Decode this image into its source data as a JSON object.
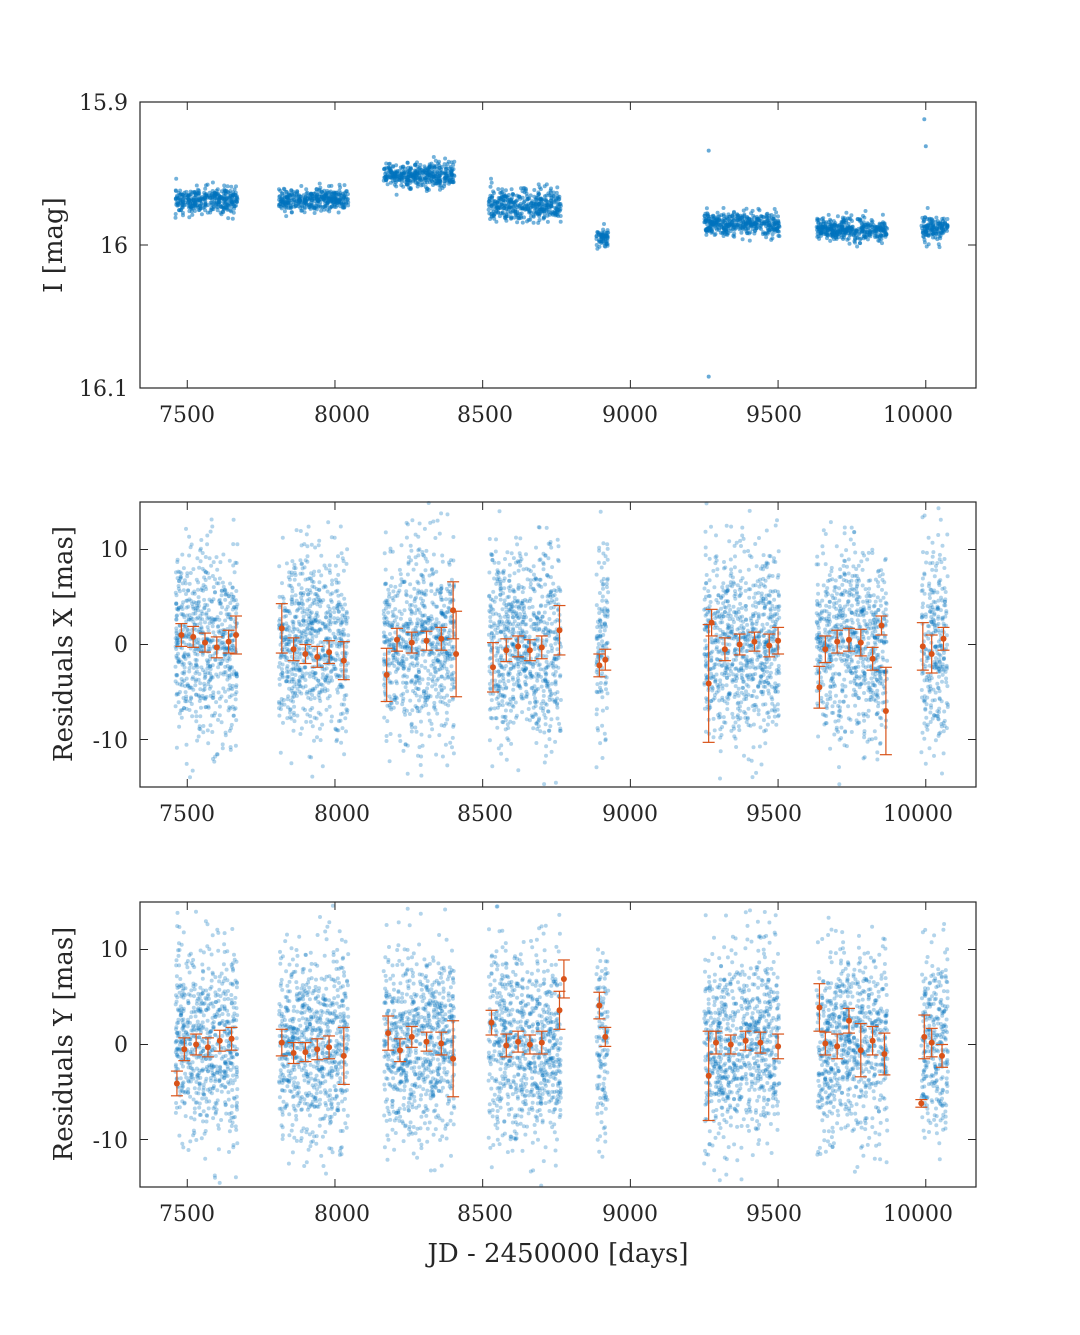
{
  "figure": {
    "xlabel": "JD - 2450000 [days]",
    "raw_color": "#0072BD",
    "binned_color": "#D95319",
    "axis_color": "#262626"
  },
  "chart_data": [
    {
      "type": "scatter",
      "name": "light-curve",
      "ylabel": "I [mag]",
      "xlim": [
        7340,
        10170
      ],
      "ylim": [
        16.1,
        15.9
      ],
      "y_inverted": true,
      "xticks": [
        "7500",
        "8000",
        "8500",
        "9000",
        "9500",
        "10000"
      ],
      "xtick_values": [
        7500,
        8000,
        8500,
        9000,
        9500,
        10000
      ],
      "yticks": [
        "15.9",
        "16",
        "16.1"
      ],
      "ytick_values": [
        15.9,
        16.0,
        16.1
      ],
      "seasons": [
        {
          "x_range": [
            7460,
            7670
          ],
          "y_center": 15.969,
          "spread": 0.008
        },
        {
          "x_range": [
            7810,
            8045
          ],
          "y_center": 15.968,
          "spread": 0.007
        },
        {
          "x_range": [
            8165,
            8405
          ],
          "y_center": 15.951,
          "spread": 0.008
        },
        {
          "x_range": [
            8520,
            8765
          ],
          "y_center": 15.972,
          "spread": 0.01
        },
        {
          "x_range": [
            8885,
            8925
          ],
          "y_center": 15.995,
          "spread": 0.006
        },
        {
          "x_range": [
            9250,
            9505
          ],
          "y_center": 15.985,
          "spread": 0.008
        },
        {
          "x_range": [
            9630,
            9870
          ],
          "y_center": 15.989,
          "spread": 0.007
        },
        {
          "x_range": [
            9985,
            10075
          ],
          "y_center": 15.989,
          "spread": 0.008
        }
      ],
      "outliers": [
        {
          "x": 9265,
          "y": 16.092
        },
        {
          "x": 9995,
          "y": 15.912
        },
        {
          "x": 10000,
          "y": 15.931
        },
        {
          "x": 9265,
          "y": 15.934
        }
      ]
    },
    {
      "type": "scatter",
      "name": "residuals-x",
      "ylabel": "Residuals X [mas]",
      "xlim": [
        7340,
        10170
      ],
      "ylim": [
        -15,
        15
      ],
      "xticks": [
        "7500",
        "8000",
        "8500",
        "9000",
        "9500",
        "10000"
      ],
      "xtick_values": [
        7500,
        8000,
        8500,
        9000,
        9500,
        10000
      ],
      "yticks": [
        "10",
        "0",
        "-10"
      ],
      "ytick_values": [
        10,
        0,
        -10
      ],
      "raw_spread": 5,
      "binned_points": [
        {
          "x": 7480,
          "y": 1.0,
          "err": 1.2
        },
        {
          "x": 7520,
          "y": 0.8,
          "err": 1.1
        },
        {
          "x": 7560,
          "y": 0.2,
          "err": 1.0
        },
        {
          "x": 7600,
          "y": -0.3,
          "err": 1.1
        },
        {
          "x": 7640,
          "y": 0.3,
          "err": 1.2
        },
        {
          "x": 7665,
          "y": 1.0,
          "err": 2.0
        },
        {
          "x": 7820,
          "y": 1.7,
          "err": 2.6
        },
        {
          "x": 7860,
          "y": -0.5,
          "err": 1.2
        },
        {
          "x": 7900,
          "y": -1.0,
          "err": 1.0
        },
        {
          "x": 7940,
          "y": -1.3,
          "err": 1.1
        },
        {
          "x": 7980,
          "y": -0.8,
          "err": 1.2
        },
        {
          "x": 8030,
          "y": -1.7,
          "err": 2.0
        },
        {
          "x": 8175,
          "y": -3.2,
          "err": 2.8
        },
        {
          "x": 8210,
          "y": 0.5,
          "err": 1.2
        },
        {
          "x": 8260,
          "y": 0.2,
          "err": 1.1
        },
        {
          "x": 8310,
          "y": 0.4,
          "err": 1.0
        },
        {
          "x": 8360,
          "y": 0.6,
          "err": 1.2
        },
        {
          "x": 8400,
          "y": 3.6,
          "err": 3.0
        },
        {
          "x": 8410,
          "y": -1.0,
          "err": 4.5
        },
        {
          "x": 8535,
          "y": -2.4,
          "err": 2.6
        },
        {
          "x": 8580,
          "y": -0.6,
          "err": 1.2
        },
        {
          "x": 8620,
          "y": -0.2,
          "err": 1.1
        },
        {
          "x": 8660,
          "y": -0.6,
          "err": 1.1
        },
        {
          "x": 8700,
          "y": -0.3,
          "err": 1.2
        },
        {
          "x": 8760,
          "y": 1.5,
          "err": 2.6
        },
        {
          "x": 8895,
          "y": -2.2,
          "err": 1.2
        },
        {
          "x": 8915,
          "y": -1.6,
          "err": 1.1
        },
        {
          "x": 9265,
          "y": -4.1,
          "err": 6.2
        },
        {
          "x": 9275,
          "y": 2.3,
          "err": 1.4
        },
        {
          "x": 9320,
          "y": -0.5,
          "err": 1.2
        },
        {
          "x": 9370,
          "y": 0.0,
          "err": 1.1
        },
        {
          "x": 9420,
          "y": 0.3,
          "err": 1.0
        },
        {
          "x": 9470,
          "y": -0.1,
          "err": 1.2
        },
        {
          "x": 9500,
          "y": 0.4,
          "err": 1.4
        },
        {
          "x": 9640,
          "y": -4.5,
          "err": 2.2
        },
        {
          "x": 9660,
          "y": -0.5,
          "err": 1.4
        },
        {
          "x": 9700,
          "y": 0.3,
          "err": 1.2
        },
        {
          "x": 9740,
          "y": 0.5,
          "err": 1.2
        },
        {
          "x": 9780,
          "y": 0.2,
          "err": 1.4
        },
        {
          "x": 9820,
          "y": -1.5,
          "err": 1.2
        },
        {
          "x": 9850,
          "y": 2.0,
          "err": 1.0
        },
        {
          "x": 9865,
          "y": -7.0,
          "err": 4.6
        },
        {
          "x": 9990,
          "y": -0.2,
          "err": 2.5
        },
        {
          "x": 10020,
          "y": -1.0,
          "err": 2.0
        },
        {
          "x": 10060,
          "y": 0.6,
          "err": 1.2
        }
      ]
    },
    {
      "type": "scatter",
      "name": "residuals-y",
      "ylabel": "Residuals Y [mas]",
      "xlim": [
        7340,
        10170
      ],
      "ylim": [
        -15,
        15
      ],
      "xticks": [
        "7500",
        "8000",
        "8500",
        "9000",
        "9500",
        "10000"
      ],
      "xtick_values": [
        7500,
        8000,
        8500,
        9000,
        9500,
        10000
      ],
      "yticks": [
        "10",
        "0",
        "-10"
      ],
      "ytick_values": [
        10,
        0,
        -10
      ],
      "raw_spread": 5,
      "binned_points": [
        {
          "x": 7465,
          "y": -4.1,
          "err": 1.3
        },
        {
          "x": 7490,
          "y": -0.5,
          "err": 1.2
        },
        {
          "x": 7530,
          "y": 0.0,
          "err": 1.1
        },
        {
          "x": 7570,
          "y": -0.3,
          "err": 1.0
        },
        {
          "x": 7610,
          "y": 0.4,
          "err": 1.1
        },
        {
          "x": 7650,
          "y": 0.6,
          "err": 1.2
        },
        {
          "x": 7820,
          "y": 0.2,
          "err": 1.4
        },
        {
          "x": 7860,
          "y": -0.9,
          "err": 1.1
        },
        {
          "x": 7900,
          "y": -0.8,
          "err": 1.0
        },
        {
          "x": 7940,
          "y": -0.5,
          "err": 1.1
        },
        {
          "x": 7980,
          "y": -0.3,
          "err": 1.2
        },
        {
          "x": 8030,
          "y": -1.2,
          "err": 3.0
        },
        {
          "x": 8180,
          "y": 1.2,
          "err": 1.8
        },
        {
          "x": 8220,
          "y": -0.6,
          "err": 1.2
        },
        {
          "x": 8260,
          "y": 0.8,
          "err": 1.1
        },
        {
          "x": 8310,
          "y": 0.3,
          "err": 1.0
        },
        {
          "x": 8360,
          "y": 0.1,
          "err": 1.2
        },
        {
          "x": 8400,
          "y": -1.5,
          "err": 4.0
        },
        {
          "x": 8530,
          "y": 2.3,
          "err": 1.3
        },
        {
          "x": 8580,
          "y": -0.1,
          "err": 1.2
        },
        {
          "x": 8620,
          "y": 0.3,
          "err": 1.1
        },
        {
          "x": 8660,
          "y": 0.0,
          "err": 1.0
        },
        {
          "x": 8700,
          "y": 0.2,
          "err": 1.2
        },
        {
          "x": 8760,
          "y": 3.6,
          "err": 2.0
        },
        {
          "x": 8775,
          "y": 6.9,
          "err": 2.0
        },
        {
          "x": 8895,
          "y": 4.1,
          "err": 1.4
        },
        {
          "x": 8915,
          "y": 0.8,
          "err": 1.0
        },
        {
          "x": 9265,
          "y": -3.3,
          "err": 4.7
        },
        {
          "x": 9290,
          "y": 0.2,
          "err": 1.2
        },
        {
          "x": 9340,
          "y": 0.0,
          "err": 1.0
        },
        {
          "x": 9390,
          "y": 0.4,
          "err": 1.0
        },
        {
          "x": 9440,
          "y": 0.2,
          "err": 1.1
        },
        {
          "x": 9500,
          "y": -0.2,
          "err": 1.3
        },
        {
          "x": 9640,
          "y": 3.9,
          "err": 2.5
        },
        {
          "x": 9660,
          "y": 0.1,
          "err": 1.2
        },
        {
          "x": 9700,
          "y": -0.2,
          "err": 1.3
        },
        {
          "x": 9740,
          "y": 2.5,
          "err": 1.3
        },
        {
          "x": 9780,
          "y": -0.6,
          "err": 2.8
        },
        {
          "x": 9820,
          "y": 0.4,
          "err": 1.5
        },
        {
          "x": 9860,
          "y": -1.0,
          "err": 2.2
        },
        {
          "x": 9985,
          "y": -6.2,
          "err": 0.4
        },
        {
          "x": 9995,
          "y": 0.8,
          "err": 2.3
        },
        {
          "x": 10020,
          "y": 0.2,
          "err": 1.5
        },
        {
          "x": 10055,
          "y": -1.2,
          "err": 1.2
        }
      ],
      "raw_seasons": [
        {
          "x_range": [
            7460,
            7670
          ]
        },
        {
          "x_range": [
            7810,
            8045
          ]
        },
        {
          "x_range": [
            8165,
            8405
          ]
        },
        {
          "x_range": [
            8520,
            8765
          ]
        },
        {
          "x_range": [
            8885,
            8925
          ]
        },
        {
          "x_range": [
            9250,
            9505
          ]
        },
        {
          "x_range": [
            9630,
            9870
          ]
        },
        {
          "x_range": [
            9985,
            10075
          ]
        }
      ]
    }
  ]
}
